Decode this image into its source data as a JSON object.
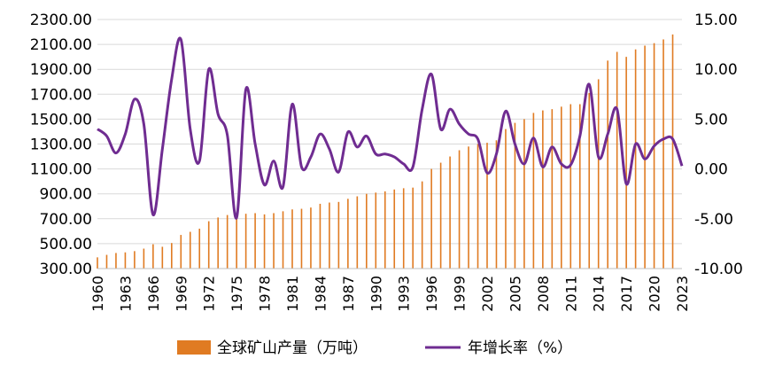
{
  "chart_data": {
    "type": "bar+line",
    "x": [
      1960,
      1961,
      1962,
      1963,
      1964,
      1965,
      1966,
      1967,
      1968,
      1969,
      1970,
      1971,
      1972,
      1973,
      1974,
      1975,
      1976,
      1977,
      1978,
      1979,
      1980,
      1981,
      1982,
      1983,
      1984,
      1985,
      1986,
      1987,
      1988,
      1989,
      1990,
      1991,
      1992,
      1993,
      1994,
      1995,
      1996,
      1997,
      1998,
      1999,
      2000,
      2001,
      2002,
      2003,
      2004,
      2005,
      2006,
      2007,
      2008,
      2009,
      2010,
      2011,
      2012,
      2013,
      2014,
      2015,
      2016,
      2017,
      2018,
      2019,
      2020,
      2021,
      2022,
      2023
    ],
    "x_tick_labels": [
      "1960",
      "1963",
      "1966",
      "1969",
      "1972",
      "1975",
      "1978",
      "1981",
      "1984",
      "1987",
      "1990",
      "1993",
      "1996",
      "1999",
      "2002",
      "2005",
      "2008",
      "2011",
      "2014",
      "2017",
      "2020",
      "2023"
    ],
    "series": [
      {
        "name": "全球矿山产量（万吨）",
        "kind": "bar",
        "axis": "left",
        "color": "#E07B22",
        "values": [
          390,
          410,
          425,
          430,
          440,
          460,
          495,
          475,
          505,
          570,
          595,
          620,
          680,
          710,
          730,
          720,
          740,
          745,
          735,
          745,
          760,
          775,
          780,
          790,
          820,
          830,
          835,
          860,
          880,
          900,
          910,
          920,
          935,
          945,
          950,
          1000,
          1100,
          1150,
          1200,
          1250,
          1280,
          1300,
          1310,
          1330,
          1420,
          1470,
          1500,
          1550,
          1570,
          1580,
          1600,
          1620,
          1620,
          1710,
          1820,
          1970,
          2040,
          2000,
          2060,
          2090,
          2110,
          2140,
          2180,
          null
        ]
      },
      {
        "name": "年增长率（%）",
        "kind": "line",
        "axis": "right",
        "color": "#6F2C91",
        "values": [
          4.0,
          3.3,
          1.6,
          3.5,
          7.0,
          4.5,
          -4.6,
          2.0,
          9.0,
          13.0,
          4.0,
          0.8,
          10.0,
          5.5,
          3.4,
          -4.9,
          8.0,
          2.5,
          -1.6,
          0.8,
          -1.8,
          6.5,
          0.2,
          1.2,
          3.5,
          2.0,
          -0.3,
          3.7,
          2.2,
          3.3,
          1.5,
          1.5,
          1.2,
          0.5,
          0.2,
          6.0,
          9.5,
          4.0,
          6.0,
          4.5,
          3.5,
          3.0,
          -0.4,
          1.5,
          5.8,
          2.5,
          0.5,
          3.1,
          0.2,
          2.2,
          0.5,
          0.4,
          3.3,
          8.5,
          1.2,
          3.5,
          6.0,
          -1.5,
          2.5,
          1.0,
          2.3,
          3.0,
          3.0,
          0.3
        ]
      }
    ],
    "y_left": {
      "min": 300,
      "max": 2300,
      "ticks": [
        "300.00",
        "500.00",
        "700.00",
        "900.00",
        "1100.00",
        "1300.00",
        "1500.00",
        "1700.00",
        "1900.00",
        "2100.00",
        "2300.00"
      ]
    },
    "y_right": {
      "min": -10,
      "max": 15,
      "ticks": [
        "-10.00",
        "-5.00",
        "0.00",
        "5.00",
        "10.00",
        "15.00"
      ]
    },
    "grid": "horizontal",
    "legend_position": "bottom",
    "title": ""
  },
  "legend": {
    "bar_label": "全球矿山产量（万吨）",
    "line_label": "年增长率（%）"
  }
}
